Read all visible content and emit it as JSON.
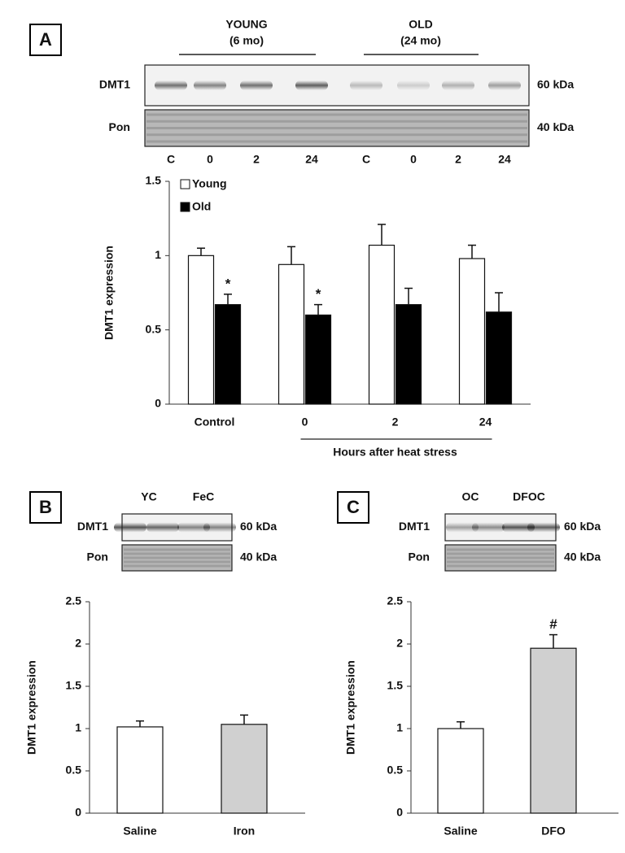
{
  "panels": [
    {
      "label": "A",
      "blot": {
        "groups": [
          {
            "name": "YOUNG",
            "detail": "(6 mo)"
          },
          {
            "name": "OLD",
            "detail": "(24 mo)"
          }
        ],
        "rows": [
          {
            "name": "DMT1",
            "size": "60 kDa"
          },
          {
            "name": "Pon",
            "size": "40 kDa"
          }
        ],
        "lanes": [
          "C",
          "0",
          "2",
          "24",
          "C",
          "0",
          "2",
          "24"
        ]
      }
    },
    {
      "label": "B",
      "blot": {
        "rows": [
          {
            "name": "DMT1",
            "size": "60 kDa"
          },
          {
            "name": "Pon",
            "size": "40 kDa"
          }
        ],
        "lanes": [
          "YC",
          "FeC"
        ]
      }
    },
    {
      "label": "C",
      "blot": {
        "rows": [
          {
            "name": "DMT1",
            "size": "60 kDa"
          },
          {
            "name": "Pon",
            "size": "40 kDa"
          }
        ],
        "lanes": [
          "OC",
          "DFOC"
        ]
      }
    }
  ],
  "chart_data": [
    {
      "type": "bar",
      "ylabel": "DMT1 expression",
      "xlabel": "Hours after heat stress",
      "categories": [
        "Control",
        "0",
        "2",
        "24"
      ],
      "series": [
        {
          "name": "Young",
          "color": "#ffffff",
          "values": [
            1.0,
            0.94,
            1.07,
            0.98
          ],
          "errors": [
            0.05,
            0.12,
            0.14,
            0.09
          ]
        },
        {
          "name": "Old",
          "color": "#000000",
          "values": [
            0.67,
            0.6,
            0.67,
            0.62
          ],
          "errors": [
            0.07,
            0.07,
            0.11,
            0.13
          ],
          "annotations": [
            "*",
            "*",
            null,
            null
          ]
        }
      ],
      "ylim": [
        0,
        1.5
      ],
      "yticks": [
        0,
        0.5,
        1,
        1.5
      ],
      "legend": "upper left"
    },
    {
      "type": "bar",
      "ylabel": "DMT1 expression",
      "categories": [
        "Saline",
        "Iron"
      ],
      "series": [
        {
          "colors": [
            "#ffffff",
            "#d0d0d0"
          ],
          "values": [
            1.02,
            1.05
          ],
          "errors": [
            0.07,
            0.11
          ]
        }
      ],
      "ylim": [
        0,
        2.5
      ],
      "yticks": [
        0,
        0.5,
        1,
        1.5,
        2,
        2.5
      ]
    },
    {
      "type": "bar",
      "ylabel": "DMT1 expression",
      "categories": [
        "Saline",
        "DFO"
      ],
      "series": [
        {
          "colors": [
            "#ffffff",
            "#d0d0d0"
          ],
          "values": [
            1.0,
            1.95
          ],
          "errors": [
            0.08,
            0.16
          ],
          "annotations": [
            null,
            "#"
          ]
        }
      ],
      "ylim": [
        0,
        2.5
      ],
      "yticks": [
        0,
        0.5,
        1,
        1.5,
        2,
        2.5
      ]
    }
  ]
}
